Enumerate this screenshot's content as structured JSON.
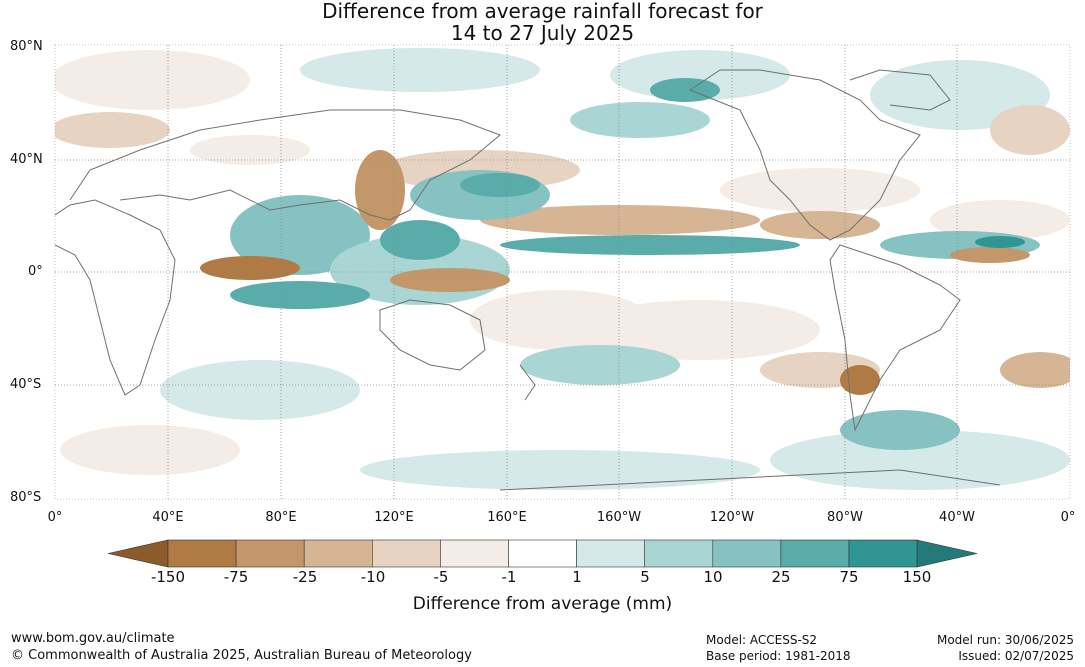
{
  "title": {
    "line1": "Difference from average rainfall forecast for",
    "line2": "14 to 27 July 2025"
  },
  "map": {
    "lat_labels": [
      "80°N",
      "40°N",
      "0°",
      "40°S",
      "80°S"
    ],
    "lon_labels": [
      "0°",
      "40°E",
      "80°E",
      "120°E",
      "160°E",
      "160°W",
      "120°W",
      "80°W",
      "40°W",
      "0°"
    ]
  },
  "colorbar": {
    "ticks": [
      "-150",
      "-75",
      "-25",
      "-10",
      "-5",
      "-1",
      "1",
      "5",
      "10",
      "25",
      "75",
      "150"
    ],
    "colors": [
      "#8c5a2b",
      "#b07a45",
      "#c4976a",
      "#d6b594",
      "#e6d3c1",
      "#f4ece6",
      "#ffffff",
      "#d4e9e8",
      "#a9d5d4",
      "#85c2c1",
      "#5aacab",
      "#2f9693",
      "#237a78"
    ],
    "label": "Difference from average (mm)"
  },
  "footer": {
    "website": "www.bom.gov.au/climate",
    "copyright": "© Commonwealth of Australia 2025, Australian Bureau of Meteorology",
    "model": "Model: ACCESS-S2",
    "base_period": "Base period: 1981-2018",
    "model_run": "Model run: 30/06/2025",
    "issued": "Issued: 02/07/2025"
  }
}
